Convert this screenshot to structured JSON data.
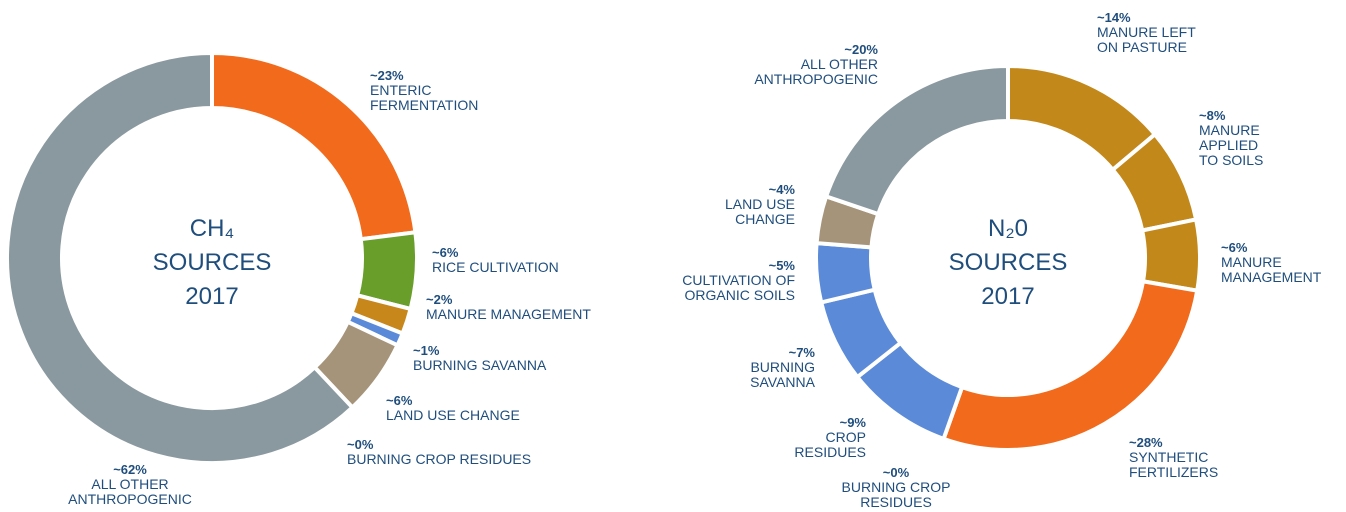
{
  "chart_data": [
    {
      "type": "donut",
      "center_label": [
        "CH₄",
        "SOURCES",
        "2017"
      ],
      "categories": [
        "ENTERIC\nFERMENTATION",
        "RICE CULTIVATION",
        "MANURE MANAGEMENT",
        "BURNING SAVANNA",
        "LAND USE CHANGE",
        "BURNING CROP RESIDUES",
        "ALL OTHER\nANTHROPOGENIC"
      ],
      "values": [
        23,
        6,
        2,
        1,
        6,
        0,
        62
      ],
      "value_labels": [
        "~23%",
        "~6%",
        "~2%",
        "~1%",
        "~6%",
        "~0%",
        "~62%"
      ],
      "colors": [
        "#f26a1b",
        "#6a9e2a",
        "#c8871a",
        "#5b8bd8",
        "#a59479",
        "#a59479",
        "#8a999f"
      ]
    },
    {
      "type": "donut",
      "center_label": [
        "N₂0",
        "SOURCES",
        "2017"
      ],
      "categories": [
        "MANURE LEFT\nON PASTURE",
        "MANURE\nAPPLIED\nTO SOILS",
        "MANURE\nMANAGEMENT",
        "SYNTHETIC\nFERTILIZERS",
        "BURNING CROP\nRESIDUES",
        "CROP\nRESIDUES",
        "BURNING\nSAVANNA",
        "CULTIVATION OF\nORGANIC SOILS",
        "LAND USE\nCHANGE",
        "ALL OTHER\nANTHROPOGENIC"
      ],
      "values": [
        14,
        8,
        6,
        28,
        0,
        9,
        7,
        5,
        4,
        20
      ],
      "value_labels": [
        "~14%",
        "~8%",
        "~6%",
        "~28%",
        "~0%",
        "~9%",
        "~7%",
        "~5%",
        "~4%",
        "~20%"
      ],
      "colors": [
        "#c3881a",
        "#c3881a",
        "#c3881a",
        "#f26a1b",
        "#5b8bd8",
        "#5b8bd8",
        "#5b8bd8",
        "#5b8bd8",
        "#a59479",
        "#8a999f"
      ]
    }
  ]
}
